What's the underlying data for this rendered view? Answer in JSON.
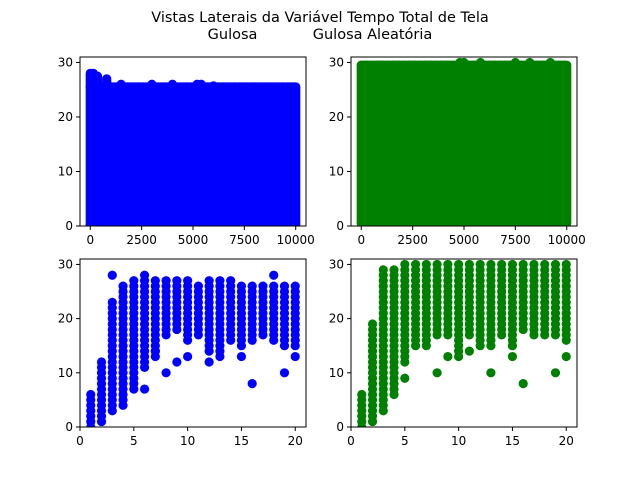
{
  "figure": {
    "title_line1": "Vistas Laterais da Variável Tempo Total de Tela",
    "title_line2": "Gulosa            Gulosa Aleatória"
  },
  "chart_data": [
    {
      "type": "scatter",
      "color": "#0000ff",
      "xlim": [
        -500,
        10500
      ],
      "ylim": [
        0,
        31
      ],
      "x_ticks": [
        0,
        2500,
        5000,
        7500,
        10000
      ],
      "x_tick_labels": [
        "0",
        "2500",
        "5000",
        "7500",
        "10000"
      ],
      "y_ticks": [
        0,
        10,
        20,
        30
      ],
      "y_tick_labels": [
        "0",
        "10",
        "20",
        "30"
      ],
      "fill_region": {
        "x": [
          0,
          10000
        ],
        "y": [
          0.3,
          25.5
        ]
      },
      "top_points": [
        [
          0,
          28
        ],
        [
          150,
          28
        ],
        [
          350,
          27.5
        ],
        [
          800,
          27
        ],
        [
          1500,
          26
        ],
        [
          3000,
          26
        ],
        [
          4000,
          26
        ],
        [
          5200,
          26
        ],
        [
          5400,
          26
        ],
        [
          6000,
          25.7
        ],
        [
          8000,
          25.5
        ],
        [
          10000,
          25.5
        ]
      ]
    },
    {
      "type": "scatter",
      "color": "#008000",
      "xlim": [
        -500,
        10500
      ],
      "ylim": [
        0,
        31
      ],
      "x_ticks": [
        0,
        2500,
        5000,
        7500,
        10000
      ],
      "x_tick_labels": [
        "0",
        "2500",
        "5000",
        "7500",
        "10000"
      ],
      "y_ticks": [
        0,
        10,
        20,
        30
      ],
      "y_tick_labels": [
        "0",
        "10",
        "20",
        "30"
      ],
      "fill_region": {
        "x": [
          0,
          10000
        ],
        "y": [
          0.5,
          29.5
        ]
      },
      "top_points": [
        [
          4800,
          30
        ],
        [
          5000,
          30
        ],
        [
          5800,
          30
        ],
        [
          7500,
          30
        ],
        [
          8200,
          30
        ],
        [
          9200,
          30
        ]
      ]
    },
    {
      "type": "scatter",
      "color": "#0000ff",
      "xlim": [
        0,
        21
      ],
      "ylim": [
        0,
        31
      ],
      "x_ticks": [
        0,
        5,
        10,
        15,
        20
      ],
      "x_tick_labels": [
        "0",
        "5",
        "10",
        "15",
        "20"
      ],
      "y_ticks": [
        0,
        10,
        20,
        30
      ],
      "y_tick_labels": [
        "0",
        "10",
        "20",
        "30"
      ],
      "columns": [
        {
          "x": 1,
          "min": 0,
          "max": 6
        },
        {
          "x": 2,
          "min": 1,
          "max": 12
        },
        {
          "x": 3,
          "min": 3,
          "max": 23
        },
        {
          "x": 4,
          "min": 4,
          "max": 26
        },
        {
          "x": 5,
          "min": 7,
          "max": 27
        },
        {
          "x": 6,
          "min": 11,
          "max": 28
        },
        {
          "x": 7,
          "min": 13,
          "max": 27
        },
        {
          "x": 8,
          "min": 17,
          "max": 27
        },
        {
          "x": 9,
          "min": 18,
          "max": 27
        },
        {
          "x": 10,
          "min": 16,
          "max": 27
        },
        {
          "x": 11,
          "min": 17,
          "max": 26
        },
        {
          "x": 12,
          "min": 14,
          "max": 27
        },
        {
          "x": 13,
          "min": 14,
          "max": 27
        },
        {
          "x": 14,
          "min": 16,
          "max": 27
        },
        {
          "x": 15,
          "min": 15,
          "max": 26
        },
        {
          "x": 16,
          "min": 16,
          "max": 26
        },
        {
          "x": 17,
          "min": 17,
          "max": 26
        },
        {
          "x": 18,
          "min": 16,
          "max": 26
        },
        {
          "x": 19,
          "min": 15,
          "max": 26
        },
        {
          "x": 20,
          "min": 15,
          "max": 26
        }
      ],
      "outliers": [
        [
          3,
          28
        ],
        [
          6,
          7
        ],
        [
          7,
          14
        ],
        [
          8,
          10
        ],
        [
          9,
          12
        ],
        [
          10,
          13
        ],
        [
          12,
          12
        ],
        [
          13,
          13
        ],
        [
          15,
          13
        ],
        [
          16,
          8
        ],
        [
          18,
          28
        ],
        [
          19,
          10
        ],
        [
          20,
          13
        ]
      ]
    },
    {
      "type": "scatter",
      "color": "#008000",
      "xlim": [
        0,
        21
      ],
      "ylim": [
        0,
        31
      ],
      "x_ticks": [
        0,
        5,
        10,
        15,
        20
      ],
      "x_tick_labels": [
        "0",
        "5",
        "10",
        "15",
        "20"
      ],
      "y_ticks": [
        0,
        10,
        20,
        30
      ],
      "y_tick_labels": [
        "0",
        "10",
        "20",
        "30"
      ],
      "columns": [
        {
          "x": 1,
          "min": 0,
          "max": 6
        },
        {
          "x": 2,
          "min": 1,
          "max": 19
        },
        {
          "x": 3,
          "min": 3,
          "max": 29
        },
        {
          "x": 4,
          "min": 6,
          "max": 29
        },
        {
          "x": 5,
          "min": 12,
          "max": 30
        },
        {
          "x": 6,
          "min": 15,
          "max": 30
        },
        {
          "x": 7,
          "min": 15,
          "max": 30
        },
        {
          "x": 8,
          "min": 17,
          "max": 30
        },
        {
          "x": 9,
          "min": 17,
          "max": 30
        },
        {
          "x": 10,
          "min": 14,
          "max": 30
        },
        {
          "x": 11,
          "min": 17,
          "max": 30
        },
        {
          "x": 12,
          "min": 15,
          "max": 30
        },
        {
          "x": 13,
          "min": 15,
          "max": 30
        },
        {
          "x": 14,
          "min": 17,
          "max": 30
        },
        {
          "x": 15,
          "min": 15,
          "max": 30
        },
        {
          "x": 16,
          "min": 18,
          "max": 30
        },
        {
          "x": 17,
          "min": 17,
          "max": 30
        },
        {
          "x": 18,
          "min": 17,
          "max": 30
        },
        {
          "x": 19,
          "min": 17,
          "max": 30
        },
        {
          "x": 20,
          "min": 16,
          "max": 30
        }
      ],
      "outliers": [
        [
          5,
          9
        ],
        [
          8,
          10
        ],
        [
          9,
          13
        ],
        [
          10,
          13
        ],
        [
          11,
          14
        ],
        [
          13,
          10
        ],
        [
          15,
          13
        ],
        [
          16,
          8
        ],
        [
          19,
          10
        ],
        [
          20,
          13
        ]
      ]
    }
  ]
}
